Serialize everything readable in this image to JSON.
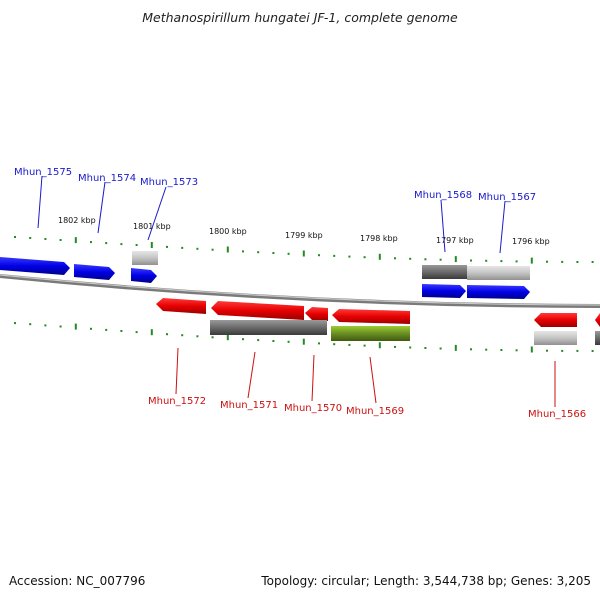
{
  "title": "Methanospirillum hungatei JF-1, complete genome",
  "footer": {
    "accession": "Accession: NC_007796",
    "summary": "Topology: circular; Length: 3,544,738 bp; Genes: 3,205"
  },
  "scale_labels": [
    "1802 kbp",
    "1801 kbp",
    "1800 kbp",
    "1799 kbp",
    "1798 kbp",
    "1797 kbp",
    "1796 kbp"
  ],
  "genes_top": [
    "Mhun_1575",
    "Mhun_1574",
    "Mhun_1573",
    "Mhun_1568",
    "Mhun_1567"
  ],
  "genes_bottom": [
    "Mhun_1572",
    "Mhun_1571",
    "Mhun_1570",
    "Mhun_1569",
    "Mhun_1566"
  ],
  "colors": {
    "forward_gene": "#0a0ae0",
    "reverse_gene": "#e00a0a",
    "pseudo_gene": "#6b6b6b",
    "rna_gene": "#6b8e23",
    "ticks": "#228b22",
    "backbone": "#808080",
    "top_label": "#1a1acc",
    "bottom_label": "#cc1111"
  }
}
